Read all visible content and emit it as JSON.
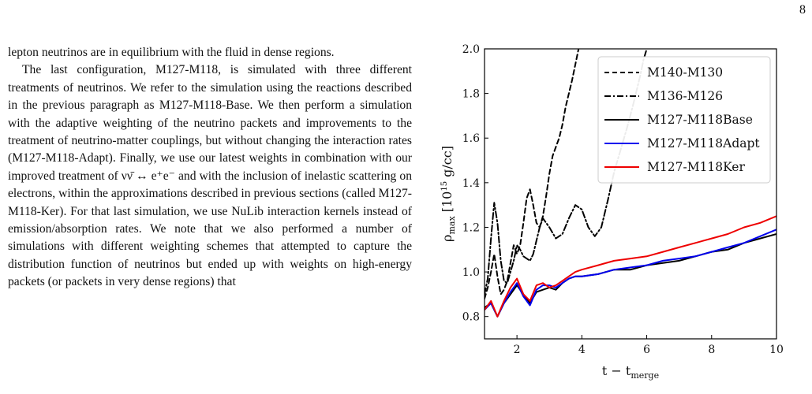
{
  "page_number": "8",
  "text": {
    "p1": "lepton neutrinos are in equilibrium with the fluid in dense regions.",
    "p2": "The last configuration, M127-M118, is simulated with three different treatments of neutrinos. We refer to the simulation using the reactions described in the previous paragraph as M127-M118-Base. We then perform a simulation with the adaptive weighting of the neutrino packets and improvements to the treatment of neutrino-matter couplings, but without changing the interaction rates (M127-M118-Adapt). Finally, we use our latest weights in combination with our improved treatment of νν̄ ↔ e⁺e⁻ and with the inclusion of inelastic scattering on electrons, within the approximations described in previous sections (called M127-M118-Ker). For that last simulation, we use NuLib interaction kernels instead of emission/absorption rates. We note that we also performed a number of simulations with different weighting schemes that attempted to capture the distribution function of neutrinos but ended up with weights on high-energy packets (or packets in very dense regions) that"
  },
  "chart_data": {
    "type": "line",
    "xlabel": "t − t_merge",
    "ylabel": "ρ_max [10^15 g/cc]",
    "xlim": [
      1.0,
      10.0
    ],
    "ylim": [
      0.7,
      2.0
    ],
    "xticks": [
      2,
      4,
      6,
      8,
      10
    ],
    "yticks": [
      0.8,
      1.0,
      1.2,
      1.4,
      1.6,
      1.8,
      2.0
    ],
    "ytick_labels": [
      "0.8",
      "1.0",
      "1.2",
      "1.4",
      "1.6",
      "1.8",
      "2.0"
    ],
    "legend_position": "upper-right",
    "grid": false,
    "series": [
      {
        "name": "M140-M130",
        "color": "#000000",
        "dash": "6,4",
        "x": [
          1.0,
          1.1,
          1.2,
          1.3,
          1.4,
          1.5,
          1.6,
          1.7,
          1.8,
          1.9,
          2.0,
          2.1,
          2.2,
          2.3,
          2.4,
          2.5,
          2.6,
          2.7,
          2.8,
          2.9,
          3.0,
          3.1,
          3.2,
          3.3,
          3.4,
          3.5,
          3.6,
          3.7,
          3.8,
          3.9
        ],
        "y": [
          0.88,
          0.93,
          1.0,
          1.08,
          0.98,
          0.9,
          0.92,
          0.96,
          1.04,
          1.12,
          1.08,
          1.12,
          1.22,
          1.33,
          1.37,
          1.3,
          1.22,
          1.2,
          1.25,
          1.34,
          1.44,
          1.52,
          1.56,
          1.6,
          1.66,
          1.74,
          1.8,
          1.86,
          1.93,
          2.0
        ]
      },
      {
        "name": "M136-M126",
        "color": "#000000",
        "dash": "8,3,2,3",
        "x": [
          1.0,
          1.1,
          1.2,
          1.3,
          1.4,
          1.5,
          1.6,
          1.7,
          1.8,
          1.9,
          2.0,
          2.1,
          2.2,
          2.3,
          2.4,
          2.5,
          2.6,
          2.7,
          2.8,
          2.9,
          3.0,
          3.2,
          3.4,
          3.6,
          3.8,
          4.0,
          4.2,
          4.4,
          4.6,
          4.8,
          5.0,
          5.2,
          5.4,
          5.6,
          5.8,
          5.9,
          6.0
        ],
        "y": [
          0.9,
          0.97,
          1.15,
          1.31,
          1.22,
          1.05,
          0.96,
          0.95,
          1.0,
          1.05,
          1.12,
          1.1,
          1.07,
          1.06,
          1.05,
          1.08,
          1.14,
          1.2,
          1.24,
          1.22,
          1.2,
          1.15,
          1.17,
          1.24,
          1.3,
          1.28,
          1.2,
          1.16,
          1.2,
          1.32,
          1.45,
          1.55,
          1.65,
          1.76,
          1.88,
          1.95,
          2.0
        ]
      },
      {
        "name": "M127-M118Base",
        "color": "#000000",
        "dash": "",
        "x": [
          1.0,
          1.2,
          1.4,
          1.6,
          1.8,
          2.0,
          2.2,
          2.4,
          2.6,
          2.8,
          3.0,
          3.2,
          3.4,
          3.6,
          3.8,
          4.0,
          4.5,
          5.0,
          5.5,
          6.0,
          6.5,
          7.0,
          7.5,
          8.0,
          8.5,
          9.0,
          9.5,
          10.0
        ],
        "y": [
          0.84,
          0.86,
          0.8,
          0.86,
          0.9,
          0.94,
          0.9,
          0.86,
          0.91,
          0.92,
          0.93,
          0.92,
          0.95,
          0.97,
          0.98,
          0.98,
          0.99,
          1.01,
          1.01,
          1.03,
          1.04,
          1.05,
          1.07,
          1.09,
          1.1,
          1.13,
          1.15,
          1.17
        ]
      },
      {
        "name": "M127-M118Adapt",
        "color": "#0000ee",
        "dash": "",
        "x": [
          1.0,
          1.2,
          1.4,
          1.6,
          1.8,
          2.0,
          2.2,
          2.4,
          2.6,
          2.8,
          3.0,
          3.2,
          3.4,
          3.6,
          3.8,
          4.0,
          4.5,
          5.0,
          5.5,
          6.0,
          6.5,
          7.0,
          7.5,
          8.0,
          8.5,
          9.0,
          9.5,
          10.0
        ],
        "y": [
          0.83,
          0.86,
          0.8,
          0.86,
          0.91,
          0.95,
          0.89,
          0.85,
          0.92,
          0.94,
          0.94,
          0.93,
          0.95,
          0.97,
          0.98,
          0.98,
          0.99,
          1.01,
          1.02,
          1.03,
          1.05,
          1.06,
          1.07,
          1.09,
          1.11,
          1.13,
          1.16,
          1.19
        ]
      },
      {
        "name": "M127-M118Ker",
        "color": "#ee0000",
        "dash": "",
        "x": [
          1.0,
          1.2,
          1.4,
          1.6,
          1.8,
          2.0,
          2.2,
          2.4,
          2.6,
          2.8,
          3.0,
          3.2,
          3.4,
          3.6,
          3.8,
          4.0,
          4.5,
          5.0,
          5.5,
          6.0,
          6.5,
          7.0,
          7.5,
          8.0,
          8.5,
          9.0,
          9.5,
          10.0
        ],
        "y": [
          0.83,
          0.87,
          0.8,
          0.87,
          0.93,
          0.97,
          0.9,
          0.87,
          0.94,
          0.95,
          0.93,
          0.94,
          0.96,
          0.98,
          1.0,
          1.01,
          1.03,
          1.05,
          1.06,
          1.07,
          1.09,
          1.11,
          1.13,
          1.15,
          1.17,
          1.2,
          1.22,
          1.25
        ]
      }
    ]
  }
}
